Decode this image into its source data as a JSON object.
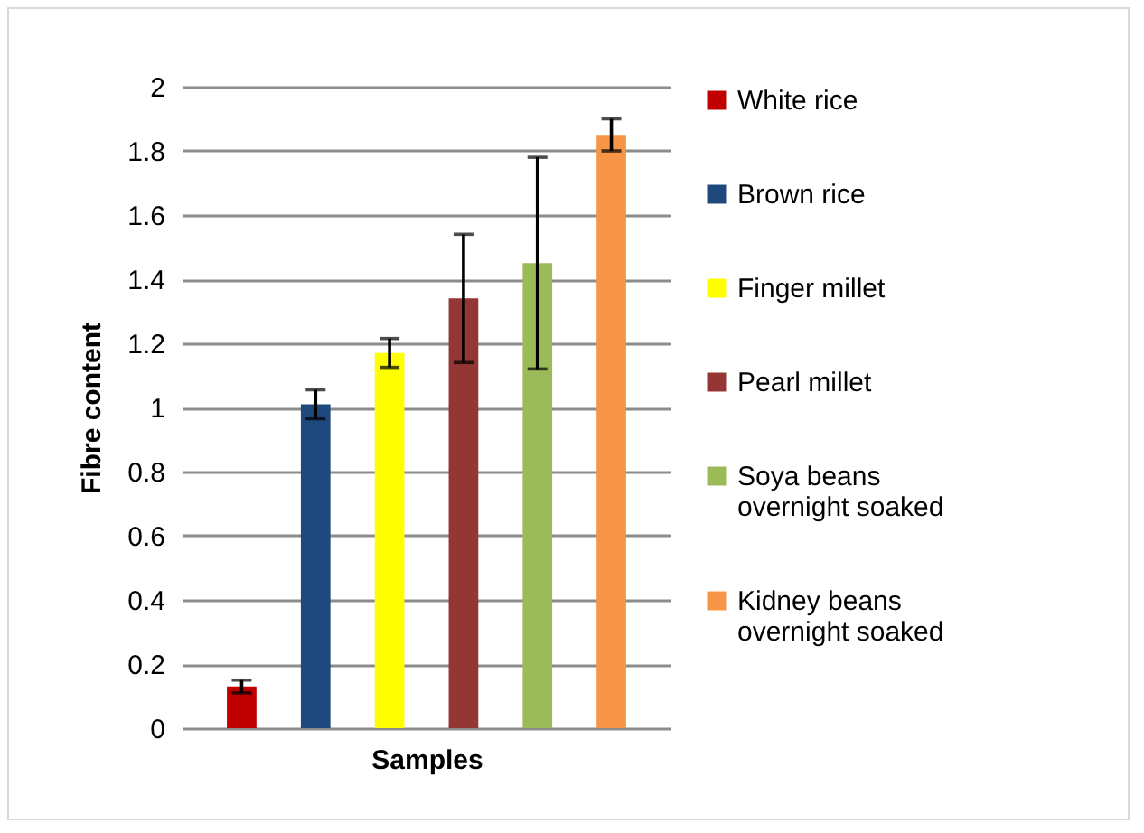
{
  "chart_data": {
    "type": "bar",
    "xlabel": "Samples",
    "ylabel": "Fibre content",
    "categories": [
      null
    ],
    "series": [
      {
        "name": "White rice",
        "color": "#c00000",
        "values": [
          0.13
        ],
        "errors": [
          0.02
        ]
      },
      {
        "name": "Brown rice",
        "color": "#1f497d",
        "values": [
          1.01
        ],
        "errors": [
          0.045
        ]
      },
      {
        "name": "Finger millet",
        "color": "#ffff00",
        "values": [
          1.17
        ],
        "errors": [
          0.045
        ]
      },
      {
        "name": "Pearl millet",
        "color": "#943634",
        "values": [
          1.34
        ],
        "errors": [
          0.2
        ]
      },
      {
        "name": "Soya beans overnight soaked",
        "color": "#9bbb59",
        "values": [
          1.45
        ],
        "errors": [
          0.33
        ]
      },
      {
        "name": "Kidney beans overnight soaked",
        "color": "#f79646",
        "values": [
          1.85
        ],
        "errors": [
          0.05
        ]
      }
    ],
    "ylim": [
      0,
      2
    ],
    "yticks": [
      0,
      0.2,
      0.4,
      0.6,
      0.8,
      1,
      1.2,
      1.4,
      1.6,
      1.8,
      2
    ],
    "grid": "y",
    "legend": "right"
  }
}
